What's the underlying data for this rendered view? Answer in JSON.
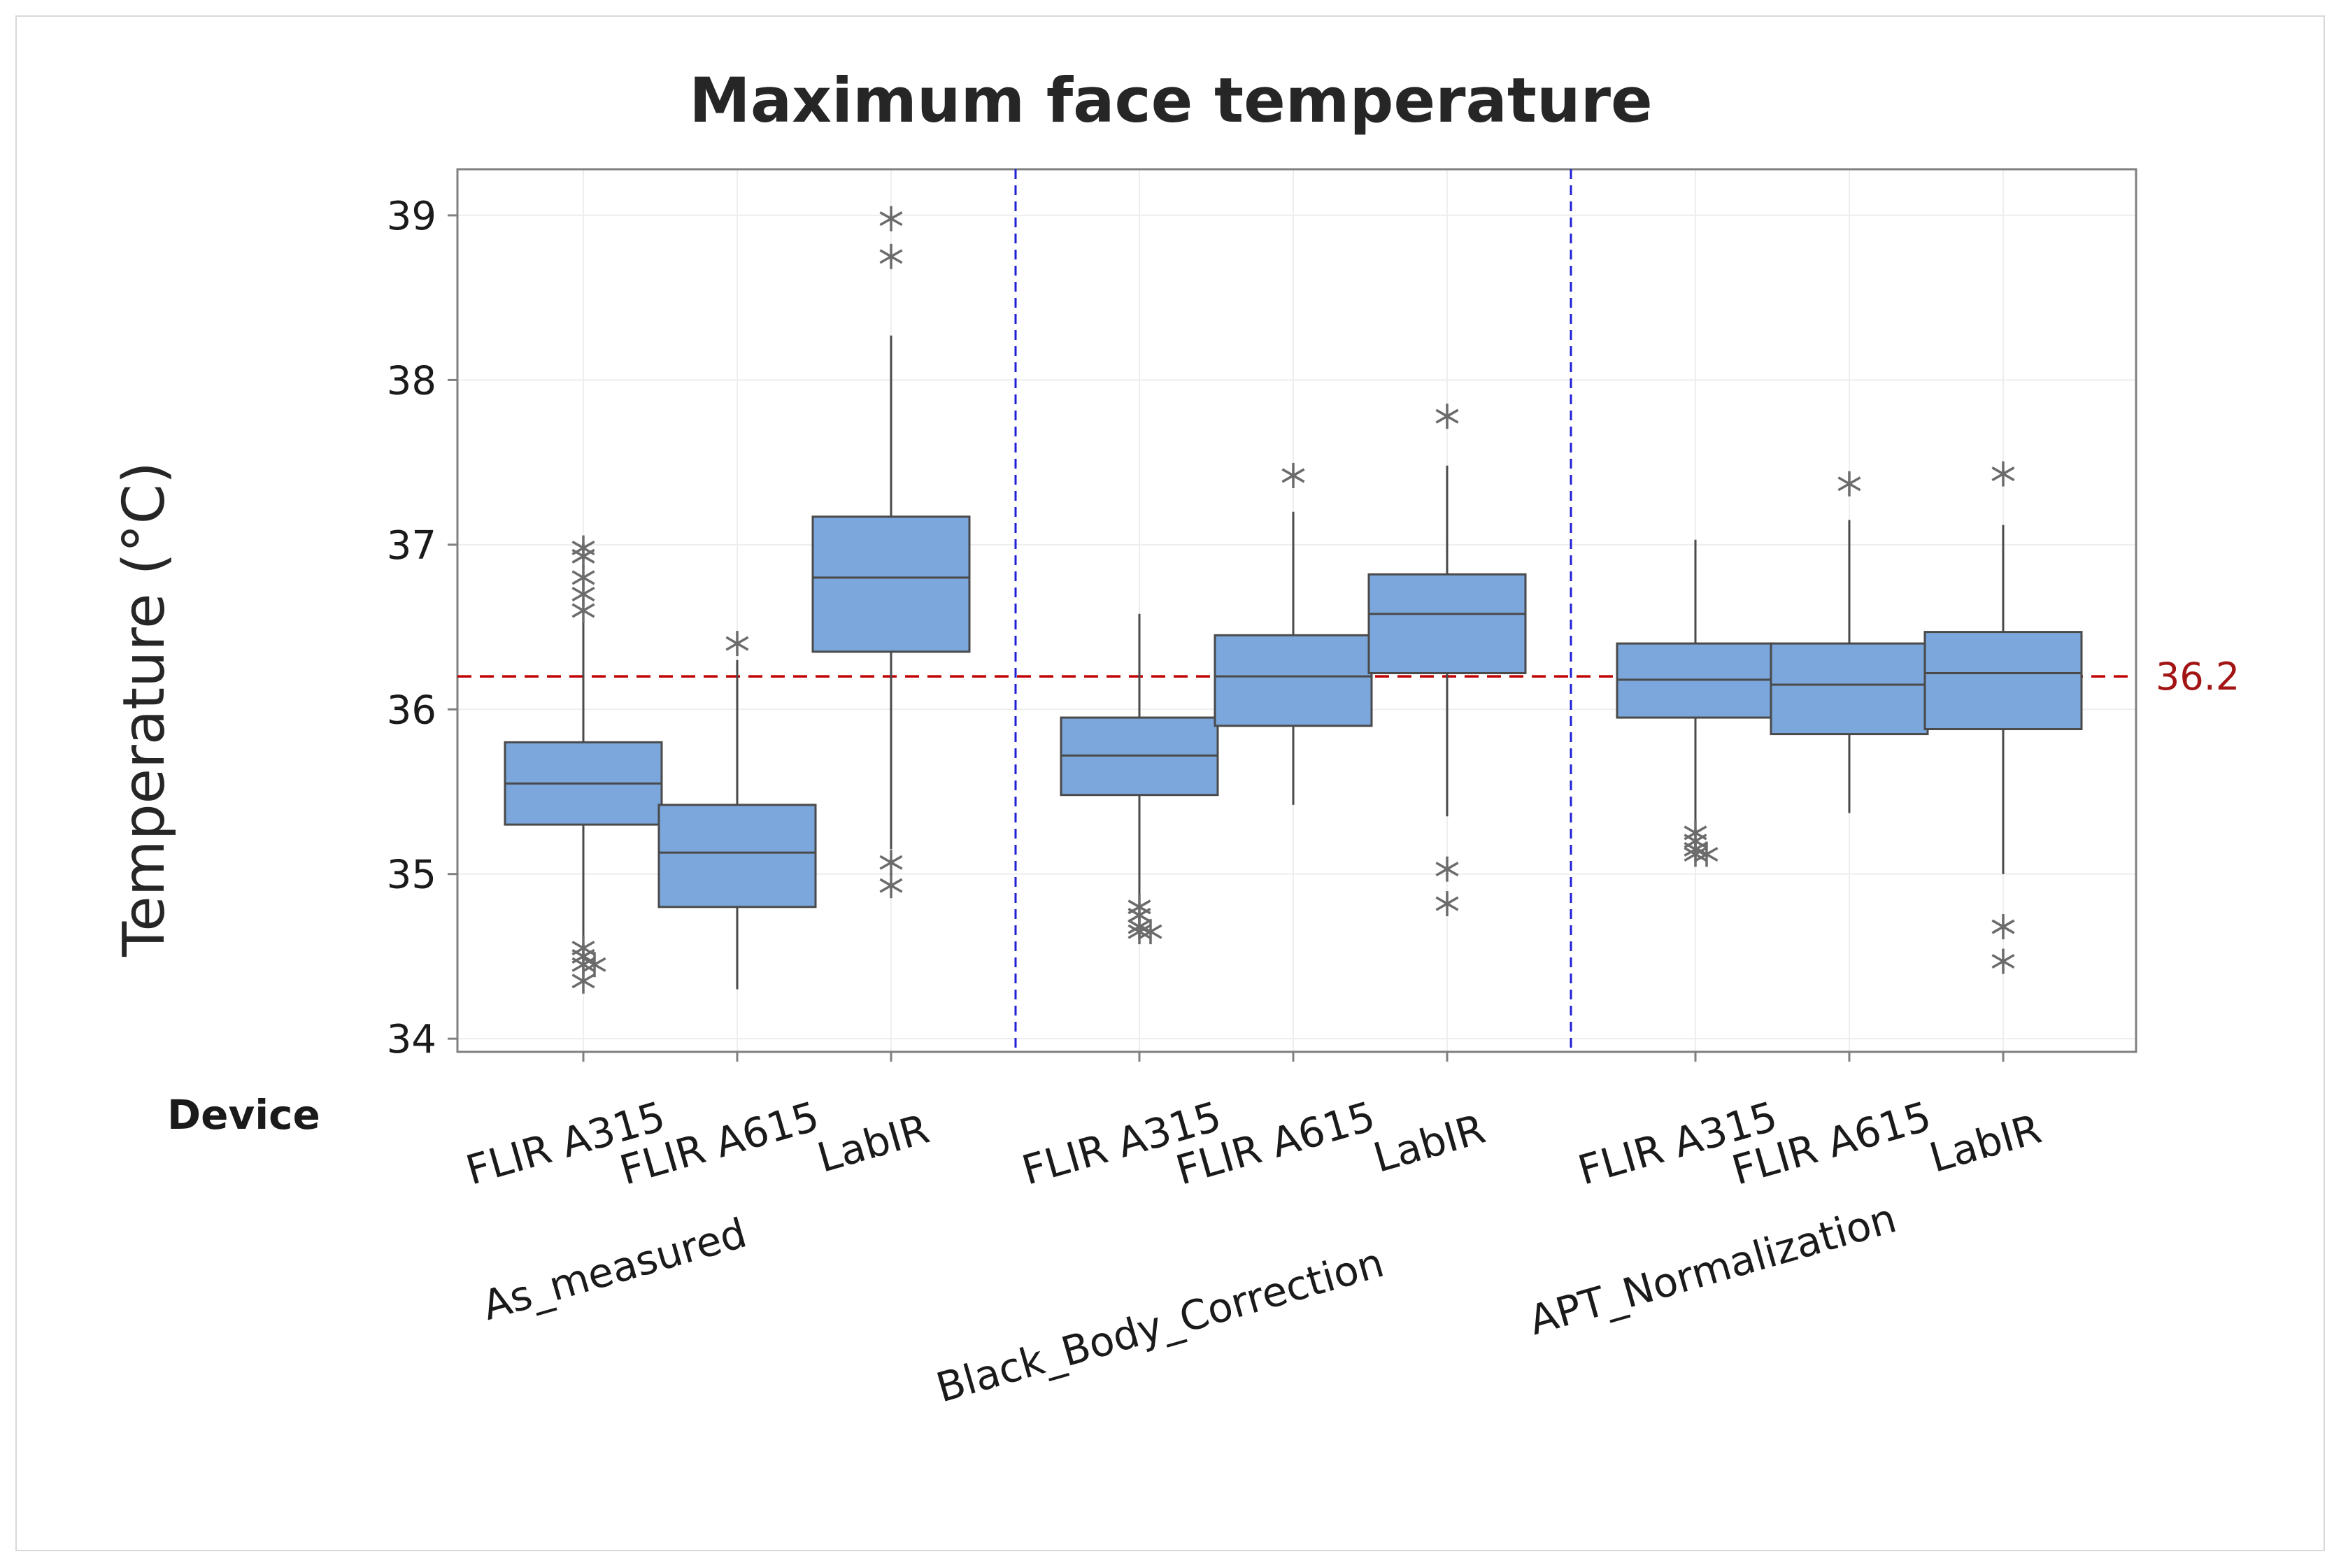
{
  "chart_data": {
    "type": "boxplot",
    "title": "Maximum face temperature",
    "ylabel": "Temperature (°C)",
    "xlabel": "Device",
    "ylim": [
      33.92,
      39.28
    ],
    "yticks": [
      34,
      35,
      36,
      37,
      38,
      39
    ],
    "yticklabels": [
      "34",
      "35",
      "36",
      "37",
      "38",
      "39"
    ],
    "grid": true,
    "reference_line": {
      "value": 36.2,
      "label": "36.2",
      "color": "#c00000"
    },
    "colors": {
      "box": "#7ba7dc",
      "box_edge": "#4a4a4a",
      "whisker": "#4a4a4a",
      "divider": "#1f1fd6",
      "grid": "#eeeeee",
      "axis": "#808080",
      "outlier": "#6b6b6b"
    },
    "groups": [
      {
        "name": "As_measured",
        "boxes": [
          {
            "device": "FLIR A315",
            "whisker_low": 34.55,
            "q1": 35.3,
            "median": 35.55,
            "q3": 35.8,
            "whisker_high": 36.55,
            "outliers": [
              36.98,
              36.93,
              36.8,
              36.7,
              36.6,
              34.55,
              34.5,
              34.45,
              34.45,
              34.35
            ]
          },
          {
            "device": "FLIR A615",
            "whisker_low": 34.3,
            "q1": 34.8,
            "median": 35.13,
            "q3": 35.42,
            "whisker_high": 36.3,
            "outliers": [
              36.4
            ]
          },
          {
            "device": "LabIR",
            "whisker_low": 35.15,
            "q1": 36.35,
            "median": 36.8,
            "q3": 37.17,
            "whisker_high": 38.27,
            "outliers": [
              38.98,
              38.75,
              35.07,
              34.93
            ]
          }
        ]
      },
      {
        "name": "Black_Body_Correction",
        "boxes": [
          {
            "device": "FLIR A315",
            "whisker_low": 34.85,
            "q1": 35.48,
            "median": 35.72,
            "q3": 35.95,
            "whisker_high": 36.58,
            "outliers": [
              34.8,
              34.75,
              34.68,
              34.65,
              34.65
            ]
          },
          {
            "device": "FLIR A615",
            "whisker_low": 35.42,
            "q1": 35.9,
            "median": 36.2,
            "q3": 36.45,
            "whisker_high": 37.2,
            "outliers": [
              37.42
            ]
          },
          {
            "device": "LabIR",
            "whisker_low": 35.35,
            "q1": 36.22,
            "median": 36.58,
            "q3": 36.82,
            "whisker_high": 37.48,
            "outliers": [
              37.78,
              35.03,
              34.82
            ]
          }
        ]
      },
      {
        "name": "APT_Normalization",
        "boxes": [
          {
            "device": "FLIR A315",
            "whisker_low": 35.28,
            "q1": 35.95,
            "median": 36.18,
            "q3": 36.4,
            "whisker_high": 37.03,
            "outliers": [
              35.25,
              35.2,
              35.15,
              35.12,
              35.12
            ]
          },
          {
            "device": "FLIR A615",
            "whisker_low": 35.37,
            "q1": 35.85,
            "median": 36.15,
            "q3": 36.4,
            "whisker_high": 37.15,
            "outliers": [
              37.37
            ]
          },
          {
            "device": "LabIR",
            "whisker_low": 35.0,
            "q1": 35.88,
            "median": 36.22,
            "q3": 36.47,
            "whisker_high": 37.12,
            "outliers": [
              37.43,
              34.68,
              34.47
            ]
          }
        ]
      }
    ]
  }
}
